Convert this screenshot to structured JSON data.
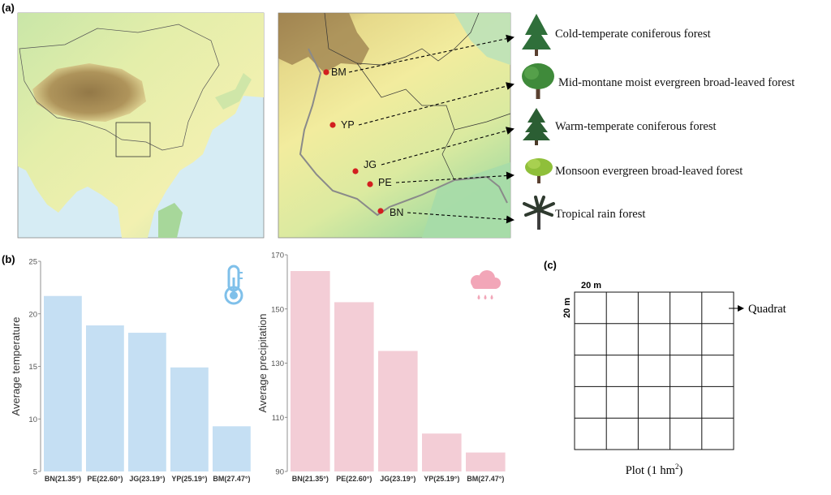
{
  "panel_labels": {
    "a": "(a)",
    "b": "(b)",
    "c": "(c)"
  },
  "map": {
    "sites": [
      {
        "code": "BM",
        "forest": "Cold-temperate coniferous forest"
      },
      {
        "code": "YP",
        "forest": "Mid-montane moist evergreen broad-leaved forest"
      },
      {
        "code": "JG",
        "forest": "Warm-temperate coniferous forest"
      },
      {
        "code": "PE",
        "forest": "Monsoon evergreen broad-leaved forest"
      },
      {
        "code": "BN",
        "forest": "Tropical rain forest"
      }
    ],
    "site_color": "#d21f1f",
    "tree_icons": [
      "conifer-tree-icon",
      "broadleaf-tree-icon",
      "conifer-tree-icon",
      "bushy-tree-icon",
      "palm-tree-icon"
    ]
  },
  "chart_data": [
    {
      "type": "bar",
      "categories": [
        "BN(21.35°)",
        "PE(22.60°)",
        "JG(23.19°)",
        "YP(25.19°)",
        "BM(27.47°)"
      ],
      "values": [
        21.7,
        18.9,
        18.2,
        14.9,
        9.3
      ],
      "title": "",
      "xlabel": "",
      "ylabel": "Average temperature",
      "ylim": [
        5,
        25
      ],
      "yticks": [
        5,
        10,
        15,
        20,
        25
      ],
      "color": "#c5dff3",
      "grid": false,
      "icon": "thermometer-icon"
    },
    {
      "type": "bar",
      "categories": [
        "BN(21.35°)",
        "PE(22.60°)",
        "JG(23.19°)",
        "YP(25.19°)",
        "BM(27.47°)"
      ],
      "values": [
        164,
        152.5,
        134.5,
        104,
        97
      ],
      "title": "",
      "xlabel": "",
      "ylabel": "Average precipitation",
      "ylim": [
        90,
        170
      ],
      "yticks": [
        90,
        110,
        130,
        150,
        170
      ],
      "color": "#f3cdd6",
      "grid": false,
      "icon": "rain-cloud-icon"
    }
  ],
  "plot_diagram": {
    "rows": 5,
    "cols": 5,
    "cell_width_label": "20 m",
    "cell_height_label": "20 m",
    "quadrat_label": "Quadrat",
    "plot_label_main": "Plot (1 hm",
    "plot_label_sup": "2",
    "plot_label_end": ")"
  }
}
